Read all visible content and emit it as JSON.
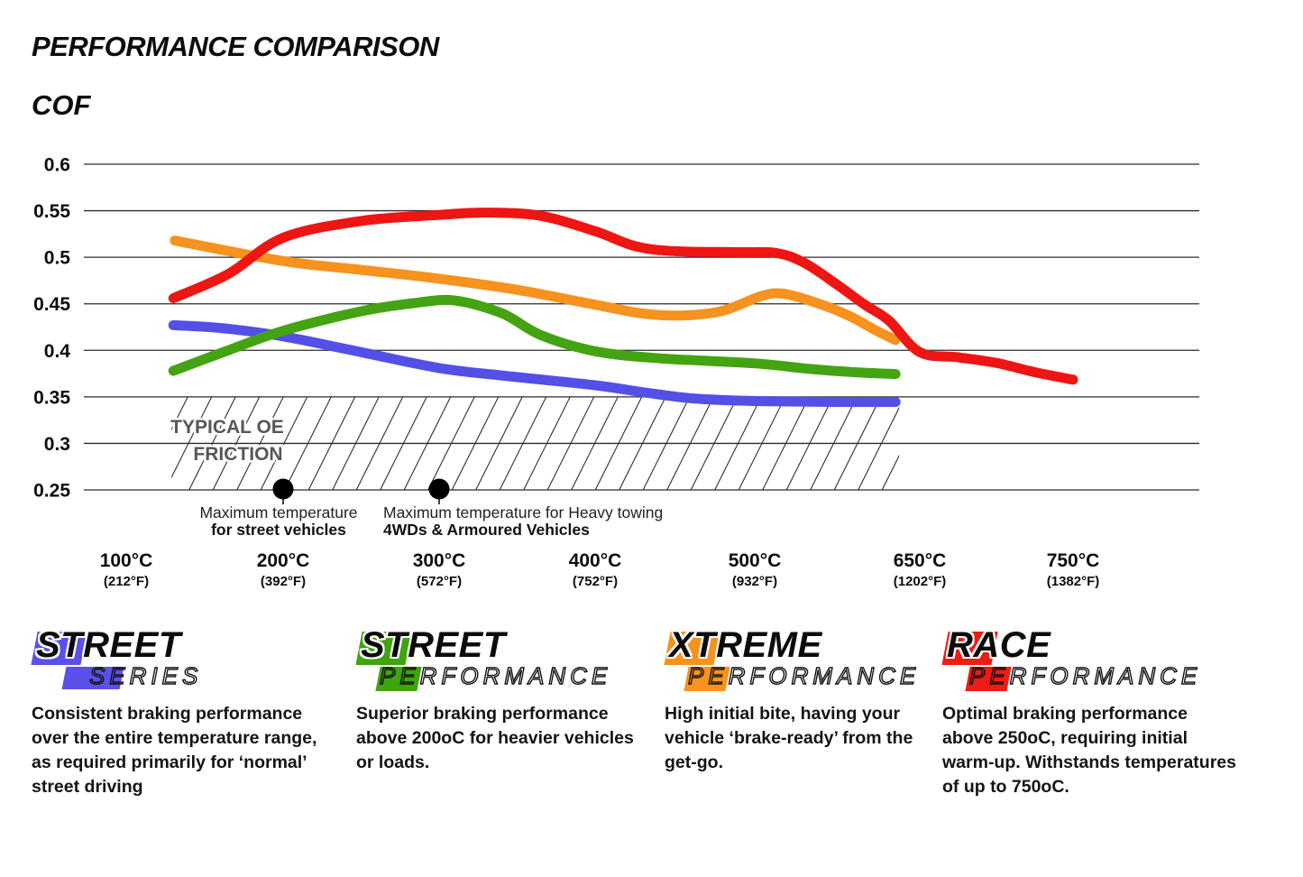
{
  "page": {
    "title": "PERFORMANCE COMPARISON",
    "axis_title": "COF"
  },
  "chart_data": {
    "type": "line",
    "title": "PERFORMANCE COMPARISON",
    "ylabel": "COF",
    "xlabel": "",
    "grid": "horizontal",
    "ylim": [
      0.25,
      0.6
    ],
    "y_ticks": [
      "0.6",
      "0.55",
      "0.5",
      "0.45",
      "0.4",
      "0.35",
      "0.3",
      "0.25"
    ],
    "y_tick_values": [
      0.6,
      0.55,
      0.5,
      0.45,
      0.4,
      0.35,
      0.3,
      0.25
    ],
    "x_ticks": [
      {
        "temp": 100,
        "label_c": "100°C",
        "label_f": "(212°F)"
      },
      {
        "temp": 200,
        "label_c": "200°C",
        "label_f": "(392°F)"
      },
      {
        "temp": 300,
        "label_c": "300°C",
        "label_f": "(572°F)"
      },
      {
        "temp": 400,
        "label_c": "400°C",
        "label_f": "(752°F)"
      },
      {
        "temp": 500,
        "label_c": "500°C",
        "label_f": "(932°F)"
      },
      {
        "temp": 650,
        "label_c": "650°C",
        "label_f": "(1202°F)"
      },
      {
        "temp": 750,
        "label_c": "750°C",
        "label_f": "(1382°F)"
      }
    ],
    "series": [
      {
        "name": "Street Series",
        "color": "#544fe6",
        "points": [
          [
            130,
            0.427
          ],
          [
            160,
            0.424
          ],
          [
            200,
            0.415
          ],
          [
            250,
            0.398
          ],
          [
            300,
            0.381
          ],
          [
            340,
            0.373
          ],
          [
            400,
            0.3625
          ],
          [
            430,
            0.355
          ],
          [
            460,
            0.3485
          ],
          [
            490,
            0.346
          ],
          [
            530,
            0.345
          ],
          [
            580,
            0.3445
          ],
          [
            628,
            0.3445
          ]
        ]
      },
      {
        "name": "Street Performance",
        "color": "#44a312",
        "points": [
          [
            130,
            0.378
          ],
          [
            165,
            0.4
          ],
          [
            200,
            0.421
          ],
          [
            250,
            0.442
          ],
          [
            285,
            0.451
          ],
          [
            310,
            0.4535
          ],
          [
            340,
            0.44
          ],
          [
            365,
            0.4165
          ],
          [
            400,
            0.399
          ],
          [
            440,
            0.3915
          ],
          [
            500,
            0.386
          ],
          [
            550,
            0.38
          ],
          [
            590,
            0.3765
          ],
          [
            628,
            0.3745
          ]
        ]
      },
      {
        "name": "Xtreme Performance",
        "color": "#f6921e",
        "points": [
          [
            131,
            0.518
          ],
          [
            200,
            0.496
          ],
          [
            250,
            0.4865
          ],
          [
            300,
            0.477
          ],
          [
            350,
            0.465
          ],
          [
            400,
            0.449
          ],
          [
            430,
            0.4395
          ],
          [
            455,
            0.4375
          ],
          [
            480,
            0.4425
          ],
          [
            505,
            0.458
          ],
          [
            525,
            0.461
          ],
          [
            555,
            0.4515
          ],
          [
            585,
            0.4375
          ],
          [
            610,
            0.4215
          ],
          [
            628,
            0.411
          ]
        ]
      },
      {
        "name": "Race Performance",
        "color": "#ee1513",
        "points": [
          [
            130,
            0.456
          ],
          [
            165,
            0.482
          ],
          [
            200,
            0.521
          ],
          [
            250,
            0.539
          ],
          [
            300,
            0.5455
          ],
          [
            330,
            0.548
          ],
          [
            365,
            0.5445
          ],
          [
            400,
            0.528
          ],
          [
            425,
            0.512
          ],
          [
            450,
            0.5065
          ],
          [
            490,
            0.5055
          ],
          [
            520,
            0.5045
          ],
          [
            545,
            0.494
          ],
          [
            575,
            0.4705
          ],
          [
            600,
            0.449
          ],
          [
            622,
            0.432
          ],
          [
            650,
            0.398
          ],
          [
            675,
            0.3925
          ],
          [
            700,
            0.3865
          ],
          [
            725,
            0.3765
          ],
          [
            750,
            0.3685
          ]
        ]
      }
    ],
    "oe_band": {
      "label_line1": "TYPICAL OE",
      "label_line2": "FRICTION",
      "cof_min": 0.25,
      "cof_max": 0.35,
      "temp_min": 130,
      "temp_max": 628
    },
    "annotations": [
      {
        "temp": 200,
        "line1": "Maximum temperature",
        "line2": "for street vehicles",
        "align": "center"
      },
      {
        "temp": 300,
        "line1": "Maximum temperature for Heavy towing",
        "line2": "4WDs & Armoured Vehicles",
        "align": "left"
      }
    ]
  },
  "legend": [
    {
      "word1": "STREET",
      "word2": "SERIES",
      "color": "#5b50ea",
      "description": "Consistent braking performance over the entire temperature range, as required primarily for ‘normal’ street driving"
    },
    {
      "word1": "STREET",
      "word2": "PERFORMANCE",
      "color": "#3ea40f",
      "description": "Superior braking performance above 200oC for heavier vehicles or loads."
    },
    {
      "word1": "XTREME",
      "word2": "PERFORMANCE",
      "color": "#f6921e",
      "description": "High initial bite, having your vehicle ‘brake-ready’ from the get-go."
    },
    {
      "word1": "RACE",
      "word2": "PERFORMANCE",
      "color": "#ee1c13",
      "description": "Optimal braking performance above 250oC, requiring initial warm-up. Withstands temperatures of up to 750oC."
    }
  ]
}
